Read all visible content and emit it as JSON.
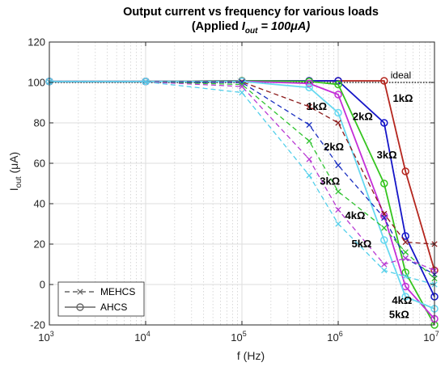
{
  "chart_data": {
    "type": "line",
    "title_line1": "Output current vs frequency for various loads",
    "title_line2_prefix": "(Applied ",
    "title_line2_var": "I",
    "title_line2_sub": "out",
    "title_line2_suffix": " = 100μA)",
    "xlabel": "f (Hz)",
    "ylabel_main": "I",
    "ylabel_sub": "out",
    "ylabel_unit": " (μA)",
    "xscale": "log",
    "xlim": [
      1000,
      10000000
    ],
    "ylim": [
      -20,
      120
    ],
    "yticks": [
      -20,
      0,
      20,
      40,
      60,
      80,
      100,
      120
    ],
    "xticks": [
      {
        "value": 1000,
        "base": "10",
        "exp": "3"
      },
      {
        "value": 10000,
        "base": "10",
        "exp": "4"
      },
      {
        "value": 100000,
        "base": "10",
        "exp": "5"
      },
      {
        "value": 1000000,
        "base": "10",
        "exp": "6"
      },
      {
        "value": 10000000,
        "base": "10",
        "exp": "7"
      }
    ],
    "grid": true,
    "ideal": {
      "value": 100,
      "label": "ideal"
    },
    "legend": {
      "position": "bottom-left",
      "entries": [
        {
          "label": "MEHCS",
          "style": "dashed",
          "marker": "x",
          "color": "#666666"
        },
        {
          "label": "AHCS",
          "style": "solid",
          "marker": "o",
          "color": "#666666"
        }
      ]
    },
    "x": [
      1000,
      10000,
      100000,
      500000,
      1000000,
      3000000,
      5000000,
      10000000
    ],
    "series": [
      {
        "name": "1kΩ",
        "type": "AHCS",
        "color": "#b5261e",
        "values": [
          100.5,
          100.5,
          100.8,
          100.8,
          100.8,
          100.8,
          56,
          7
        ]
      },
      {
        "name": "2kΩ",
        "type": "AHCS",
        "color": "#1515c8",
        "values": [
          100.5,
          100.5,
          100.8,
          100.8,
          100.8,
          80,
          24,
          -6
        ]
      },
      {
        "name": "3kΩ",
        "type": "AHCS",
        "color": "#35c51f",
        "values": [
          100.5,
          100.5,
          100.8,
          100.5,
          99,
          50,
          6,
          -20
        ]
      },
      {
        "name": "4kΩ",
        "type": "AHCS",
        "color": "#c42ed8",
        "values": [
          100.5,
          100.5,
          100.6,
          99.5,
          94,
          34,
          -1,
          -17
        ]
      },
      {
        "name": "5kΩ",
        "type": "AHCS",
        "color": "#66d8f0",
        "values": [
          100.5,
          100.5,
          100.5,
          97.5,
          85,
          22,
          -6,
          -12
        ]
      },
      {
        "name": "1kΩ",
        "type": "MEHCS",
        "color": "#8b1a1a",
        "values": [
          100.3,
          100.3,
          100.3,
          88,
          80,
          35,
          21,
          20
        ]
      },
      {
        "name": "2kΩ",
        "type": "MEHCS",
        "color": "#1a2fc0",
        "values": [
          100.3,
          100.3,
          100,
          79,
          59,
          33,
          13,
          5
        ]
      },
      {
        "name": "3kΩ",
        "type": "MEHCS",
        "color": "#2fc32f",
        "values": [
          100.3,
          100.3,
          99,
          71,
          46,
          28,
          16,
          3
        ]
      },
      {
        "name": "4kΩ",
        "type": "MEHCS",
        "color": "#b83ad3",
        "values": [
          100.3,
          100.3,
          98,
          62,
          37,
          10,
          13,
          7
        ]
      },
      {
        "name": "5kΩ",
        "type": "MEHCS",
        "color": "#52cfea",
        "values": [
          100.3,
          100.3,
          95,
          54,
          30,
          7,
          4,
          0
        ]
      }
    ],
    "annotations": [
      {
        "text": "1kΩ",
        "x": 600000,
        "y": 88
      },
      {
        "text": "2kΩ",
        "x": 1800000,
        "y": 83
      },
      {
        "text": "1kΩ",
        "x": 4700000,
        "y": 92
      },
      {
        "text": "2kΩ",
        "x": 900000,
        "y": 68
      },
      {
        "text": "3kΩ",
        "x": 3200000,
        "y": 64
      },
      {
        "text": "3kΩ",
        "x": 820000,
        "y": 51
      },
      {
        "text": "4kΩ",
        "x": 1500000,
        "y": 34
      },
      {
        "text": "5kΩ",
        "x": 1750000,
        "y": 20
      },
      {
        "text": "4kΩ",
        "x": 4600000,
        "y": -8
      },
      {
        "text": "5kΩ",
        "x": 4300000,
        "y": -15
      }
    ]
  }
}
